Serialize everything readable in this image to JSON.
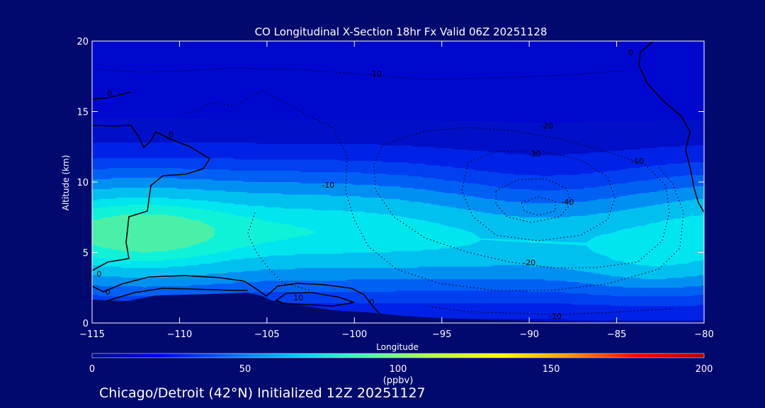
{
  "chart_data": {
    "type": "heatmap",
    "title": "CO Longitudinal X-Section 18hr  Fx Valid 06Z 20251128",
    "xlabel": "Longitude",
    "ylabel": "Altitude (km)",
    "xlim": [
      -115,
      -80
    ],
    "ylim": [
      0,
      20
    ],
    "x_ticks": [
      -115,
      -110,
      -105,
      -100,
      -95,
      -90,
      -85,
      -80
    ],
    "y_ticks": [
      0,
      5,
      10,
      15,
      20
    ],
    "colorbar": {
      "label": "(ppbv)",
      "range": [
        0,
        200
      ],
      "ticks": [
        0,
        50,
        100,
        150,
        200
      ],
      "stops": [
        "#000a8c",
        "#0000ff",
        "#0066ff",
        "#00c8ff",
        "#40ffb0",
        "#b4ff40",
        "#ffff00",
        "#ff9600",
        "#ff0000",
        "#b40000"
      ]
    },
    "filled_bands_ppbv": [
      {
        "level": 25,
        "color": "#0010c8"
      },
      {
        "level": 33,
        "color": "#0022e6"
      },
      {
        "level": 40,
        "color": "#0040f0"
      },
      {
        "level": 46,
        "color": "#0060f4"
      },
      {
        "level": 52,
        "color": "#0090f2"
      },
      {
        "level": 58,
        "color": "#00c0f0"
      },
      {
        "level": 64,
        "color": "#00e6ef"
      },
      {
        "level": 68,
        "color": "#10f2d8"
      },
      {
        "level": 72,
        "color": "#4af0a8"
      }
    ],
    "contour_labels": [
      {
        "text": "-10",
        "lon": -98.8,
        "alt": 17.5
      },
      {
        "text": "0",
        "lon": -114.0,
        "alt": 16.1
      },
      {
        "text": "0",
        "lon": -110.5,
        "alt": 13.2
      },
      {
        "text": "0",
        "lon": -84.2,
        "alt": 19.0
      },
      {
        "text": "-20",
        "lon": -89.0,
        "alt": 13.8
      },
      {
        "text": "-30",
        "lon": -89.7,
        "alt": 11.8
      },
      {
        "text": "-10",
        "lon": -83.8,
        "alt": 11.3
      },
      {
        "text": "-10",
        "lon": -101.5,
        "alt": 9.6
      },
      {
        "text": "-40",
        "lon": -87.8,
        "alt": 8.4
      },
      {
        "text": "-20",
        "lon": -90.0,
        "alt": 4.1
      },
      {
        "text": "0",
        "lon": -114.6,
        "alt": 3.3
      },
      {
        "text": "0",
        "lon": -114.1,
        "alt": 2.0
      },
      {
        "text": "10",
        "lon": -103.2,
        "alt": 1.6
      },
      {
        "text": "0",
        "lon": -99.0,
        "alt": 1.3
      },
      {
        "text": "-10",
        "lon": -88.5,
        "alt": 0.3
      }
    ]
  },
  "footer": "Chicago/Detroit (42°N) Initialized 12Z 20251127"
}
